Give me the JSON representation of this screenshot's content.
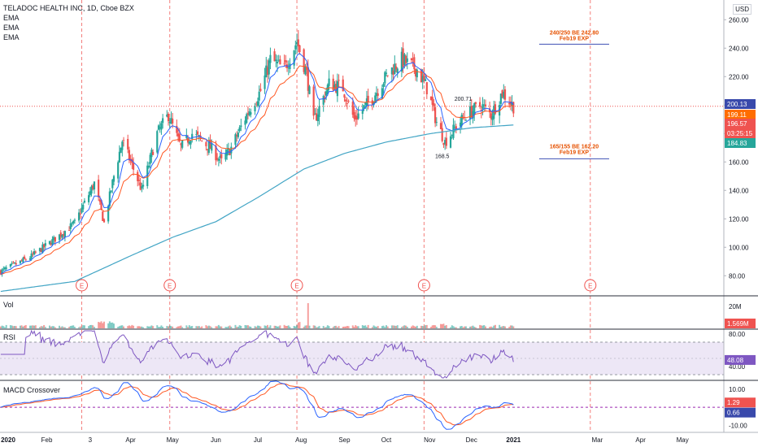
{
  "header": {
    "symbol_line": "TELADOC HEALTH INC, 1D, Cboe BZX",
    "indicators": [
      "EMA",
      "EMA",
      "EMA"
    ],
    "currency": "USD"
  },
  "panes": {
    "volume_title": "Vol",
    "rsi_title": "RSI",
    "macd_title": "MACD Crossover"
  },
  "colors": {
    "up": "#26a69a",
    "down": "#ef5350",
    "ema_fast": "#2962ff",
    "ema_slow": "#ff5722",
    "ema_long": "#42a5c5",
    "rsi_line": "#7e57c2",
    "rsi_band": "#ede7f6",
    "macd_line": "#2962ff",
    "signal_line": "#ff5722",
    "earnings": "#ef5350",
    "annotation": "#e65100",
    "target_line": "#3f51b5"
  },
  "chart_data": [
    {
      "type": "candlestick",
      "title": "TELADOC HEALTH INC, 1D, Cboe BZX",
      "x_ticks": [
        "2020",
        "Feb",
        "3",
        "Apr",
        "May",
        "Jun",
        "Jul",
        "Aug",
        "Sep",
        "Oct",
        "Nov",
        "Dec",
        "2021",
        "Mar",
        "Apr",
        "May"
      ],
      "y_ticks": [
        "80.00",
        "100.00",
        "120.00",
        "140.00",
        "160.00",
        "180.00",
        "200.00",
        "220.00",
        "240.00",
        "260.00"
      ],
      "ylim": [
        67,
        267
      ],
      "close_series_keypoints": [
        {
          "date": "2019-12-30",
          "close": 83
        },
        {
          "date": "2020-01-20",
          "close": 93
        },
        {
          "date": "2020-02-07",
          "close": 106
        },
        {
          "date": "2020-02-21",
          "close": 117
        },
        {
          "date": "2020-03-06",
          "close": 145
        },
        {
          "date": "2020-03-13",
          "close": 117
        },
        {
          "date": "2020-03-20",
          "close": 150
        },
        {
          "date": "2020-03-26",
          "close": 175
        },
        {
          "date": "2020-04-09",
          "close": 140
        },
        {
          "date": "2020-04-20",
          "close": 180
        },
        {
          "date": "2020-04-28",
          "close": 193
        },
        {
          "date": "2020-05-07",
          "close": 170
        },
        {
          "date": "2020-05-15",
          "close": 180
        },
        {
          "date": "2020-05-28",
          "close": 170
        },
        {
          "date": "2020-06-05",
          "close": 160
        },
        {
          "date": "2020-06-12",
          "close": 170
        },
        {
          "date": "2020-06-24",
          "close": 195
        },
        {
          "date": "2020-07-03",
          "close": 210
        },
        {
          "date": "2020-07-10",
          "close": 232
        },
        {
          "date": "2020-07-20",
          "close": 225
        },
        {
          "date": "2020-07-29",
          "close": 245
        },
        {
          "date": "2020-08-05",
          "close": 222
        },
        {
          "date": "2020-08-10",
          "close": 188
        },
        {
          "date": "2020-08-21",
          "close": 215
        },
        {
          "date": "2020-08-31",
          "close": 212
        },
        {
          "date": "2020-09-08",
          "close": 190
        },
        {
          "date": "2020-09-21",
          "close": 205
        },
        {
          "date": "2020-10-02",
          "close": 222
        },
        {
          "date": "2020-10-12",
          "close": 232
        },
        {
          "date": "2020-10-23",
          "close": 225
        },
        {
          "date": "2020-10-30",
          "close": 212
        },
        {
          "date": "2020-11-06",
          "close": 188
        },
        {
          "date": "2020-11-12",
          "close": 174
        },
        {
          "date": "2020-11-20",
          "close": 185
        },
        {
          "date": "2020-11-27",
          "close": 193
        },
        {
          "date": "2020-12-08",
          "close": 200
        },
        {
          "date": "2020-12-15",
          "close": 193
        },
        {
          "date": "2020-12-23",
          "close": 209
        },
        {
          "date": "2020-12-31",
          "close": 199.11
        }
      ],
      "ema_long_keypoints": [
        {
          "date": "2019-12-30",
          "value": 69
        },
        {
          "date": "2020-02-21",
          "value": 76
        },
        {
          "date": "2020-04-01",
          "value": 94
        },
        {
          "date": "2020-05-01",
          "value": 107
        },
        {
          "date": "2020-06-01",
          "value": 118
        },
        {
          "date": "2020-07-01",
          "value": 135
        },
        {
          "date": "2020-08-03",
          "value": 155
        },
        {
          "date": "2020-09-01",
          "value": 166
        },
        {
          "date": "2020-10-01",
          "value": 174
        },
        {
          "date": "2020-11-02",
          "value": 180
        },
        {
          "date": "2020-12-01",
          "value": 184
        },
        {
          "date": "2020-12-31",
          "value": 186
        }
      ],
      "point_labels": [
        {
          "text": "200.71",
          "date": "2020-11-25",
          "value": 200.71
        },
        {
          "text": "168.5",
          "date": "2020-11-10",
          "value": 168.5
        }
      ],
      "price_labels": [
        "200.13",
        "199.11",
        "196.57",
        "03:25:15",
        "184.83"
      ],
      "earnings_marker": "E",
      "earnings_dates": [
        "2020-02-26",
        "2020-04-29",
        "2020-07-29",
        "2020-10-28",
        "2021-02-24"
      ],
      "annotations": [
        {
          "line1": "240/250 BE 242.80",
          "line2": "Feb19 EXP",
          "value": 242.8
        },
        {
          "line1": "165/155 BE 162.20",
          "line2": "Feb19 EXP",
          "value": 162.2
        }
      ]
    },
    {
      "type": "bar",
      "title": "Vol",
      "y_ticks": [
        "20M"
      ],
      "last_label": "1.569M"
    },
    {
      "type": "line",
      "title": "RSI",
      "y_ticks": [
        "80.00",
        "40.00"
      ],
      "band": [
        30,
        70
      ],
      "ylim": [
        25,
        85
      ],
      "last_label": "48.08"
    },
    {
      "type": "line",
      "title": "MACD Crossover",
      "y_ticks": [
        "10.00",
        "-10.00"
      ],
      "ylim": [
        -13,
        14
      ],
      "last_labels": [
        "1.29",
        "0.66"
      ]
    }
  ]
}
